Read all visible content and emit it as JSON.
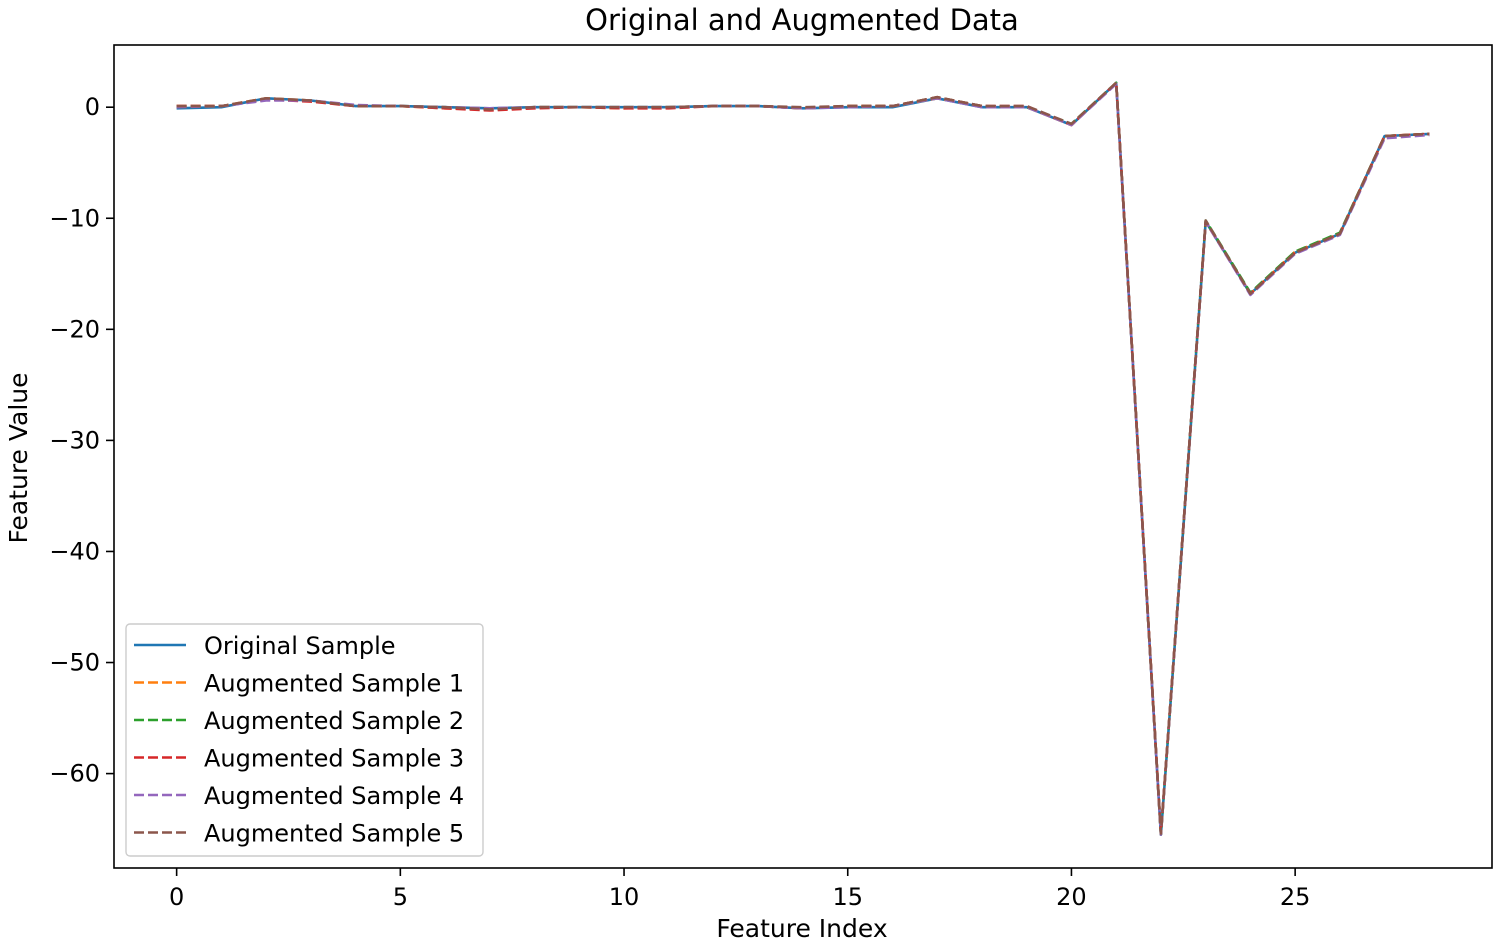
{
  "chart_data": {
    "type": "line",
    "title": "Original and Augmented Data",
    "xlabel": "Feature Index",
    "ylabel": "Feature Value",
    "xlim": [
      -1.4,
      29.4
    ],
    "ylim": [
      -68.5,
      5.6
    ],
    "xticks": [
      0,
      5,
      10,
      15,
      20,
      25
    ],
    "yticks": [
      0,
      -10,
      -20,
      -30,
      -40,
      -50,
      -60
    ],
    "grid": false,
    "legend_position": "lower-left",
    "x": [
      0,
      1,
      2,
      3,
      4,
      5,
      6,
      7,
      8,
      9,
      10,
      11,
      12,
      13,
      14,
      15,
      16,
      17,
      18,
      19,
      20,
      21,
      22,
      23,
      24,
      25,
      26,
      27,
      28
    ],
    "series": [
      {
        "name": "Original Sample",
        "color": "#1f77b4",
        "style": "solid",
        "values": [
          -0.1,
          0.0,
          0.8,
          0.6,
          0.1,
          0.1,
          0.0,
          -0.1,
          0.0,
          0.0,
          0.0,
          0.0,
          0.1,
          0.1,
          -0.1,
          0.0,
          0.0,
          0.8,
          0.0,
          0.0,
          -1.6,
          2.2,
          -65.5,
          -10.3,
          -16.8,
          -13.1,
          -11.4,
          -2.6,
          -2.4
        ]
      },
      {
        "name": "Augmented Sample 1",
        "color": "#ff7f0e",
        "style": "dashed",
        "values": [
          0.1,
          0.1,
          0.8,
          0.6,
          0.1,
          0.1,
          -0.1,
          -0.2,
          0.0,
          0.0,
          -0.1,
          0.0,
          0.1,
          0.1,
          -0.1,
          0.1,
          0.1,
          0.8,
          0.1,
          0.0,
          -1.6,
          2.2,
          -65.4,
          -10.3,
          -16.8,
          -13.0,
          -11.4,
          -2.6,
          -2.4
        ]
      },
      {
        "name": "Augmented Sample 2",
        "color": "#2ca02c",
        "style": "dashed",
        "values": [
          0.0,
          0.1,
          0.7,
          0.6,
          0.1,
          0.1,
          0.0,
          -0.2,
          0.0,
          0.0,
          0.0,
          0.0,
          0.1,
          0.1,
          -0.1,
          0.1,
          0.1,
          0.9,
          0.1,
          0.0,
          -1.5,
          2.2,
          -65.5,
          -10.2,
          -16.7,
          -13.0,
          -11.3,
          -2.6,
          -2.4
        ]
      },
      {
        "name": "Augmented Sample 3",
        "color": "#d62728",
        "style": "dashed",
        "values": [
          0.1,
          0.1,
          0.7,
          0.5,
          0.1,
          0.1,
          -0.1,
          -0.3,
          -0.1,
          0.0,
          -0.1,
          -0.1,
          0.1,
          0.1,
          -0.1,
          0.1,
          0.1,
          0.9,
          0.1,
          0.1,
          -1.6,
          2.2,
          -65.4,
          -10.3,
          -16.8,
          -13.1,
          -11.4,
          -2.6,
          -2.4
        ]
      },
      {
        "name": "Augmented Sample 4",
        "color": "#9467bd",
        "style": "dashed",
        "values": [
          0.0,
          0.1,
          0.6,
          0.6,
          0.2,
          0.1,
          0.0,
          -0.1,
          0.0,
          0.0,
          0.0,
          0.0,
          0.1,
          0.1,
          -0.1,
          0.0,
          0.1,
          0.8,
          0.0,
          0.0,
          -1.6,
          2.1,
          -65.5,
          -10.3,
          -16.9,
          -13.2,
          -11.5,
          -2.8,
          -2.5
        ]
      },
      {
        "name": "Augmented Sample 5",
        "color": "#8c564b",
        "style": "dashed",
        "values": [
          0.1,
          0.1,
          0.8,
          0.6,
          0.1,
          0.1,
          0.0,
          -0.2,
          0.0,
          0.0,
          0.0,
          0.0,
          0.1,
          0.1,
          0.0,
          0.1,
          0.1,
          0.9,
          0.1,
          0.1,
          -1.5,
          2.2,
          -65.4,
          -10.2,
          -16.8,
          -13.1,
          -11.4,
          -2.6,
          -2.4
        ]
      }
    ]
  }
}
